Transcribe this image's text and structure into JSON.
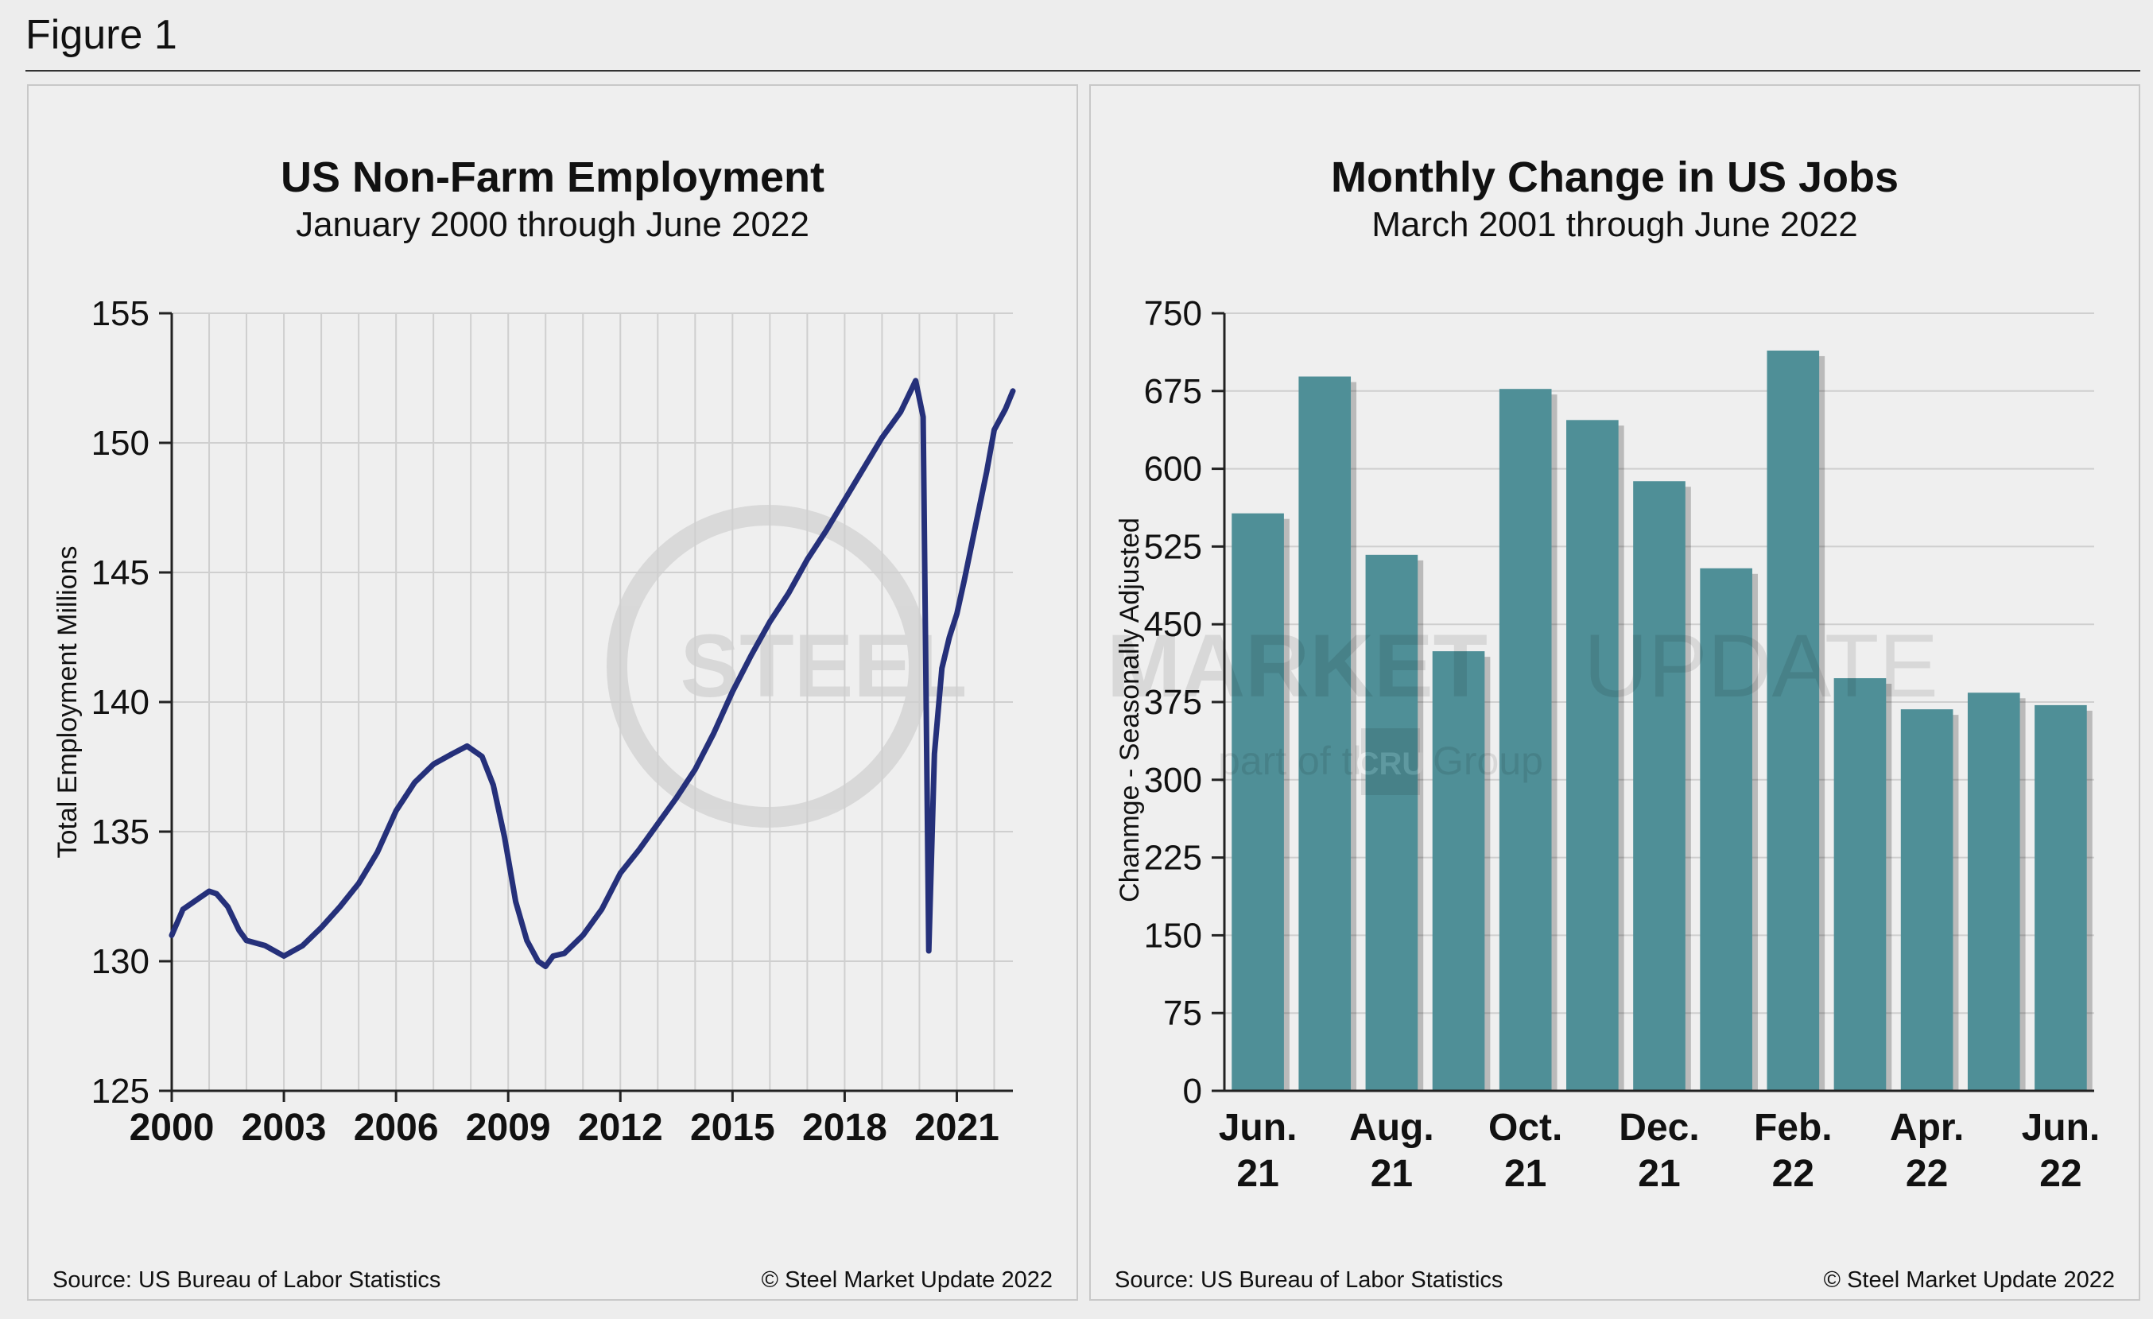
{
  "figure_title": "Figure 1",
  "watermark": {
    "line1_a": "STEEL",
    "line1_b": "MARKET",
    "line1_c": "UPDATE",
    "line2_a": "part of the",
    "line2_b": "CRU",
    "line2_c": "Group"
  },
  "colors": {
    "line": "#25307a",
    "bar": "#4f8f97",
    "grid": "#cfcfcf",
    "axis": "#222222"
  },
  "chart_data": [
    {
      "type": "line",
      "title": "US Non-Farm Employment",
      "subtitle": "January 2000 through June 2022",
      "ylabel": "Total Employment Millions",
      "xlabel": "",
      "xlim": [
        2000,
        2022.5
      ],
      "ylim": [
        125,
        155
      ],
      "yticks": [
        125,
        130,
        135,
        140,
        145,
        150,
        155
      ],
      "xticks": [
        2000,
        2003,
        2006,
        2009,
        2012,
        2015,
        2018,
        2021
      ],
      "source": "Source: US Bureau of Labor Statistics",
      "copyright": "© Steel Market Update 2022",
      "series": [
        {
          "name": "Total Employment",
          "x": [
            2000.0,
            2000.3,
            2000.6,
            2001.0,
            2001.2,
            2001.5,
            2001.8,
            2002.0,
            2002.5,
            2003.0,
            2003.5,
            2004.0,
            2004.5,
            2005.0,
            2005.5,
            2006.0,
            2006.5,
            2007.0,
            2007.5,
            2007.9,
            2008.3,
            2008.6,
            2008.9,
            2009.2,
            2009.5,
            2009.8,
            2010.0,
            2010.2,
            2010.5,
            2011.0,
            2011.5,
            2012.0,
            2012.5,
            2013.0,
            2013.5,
            2014.0,
            2014.5,
            2015.0,
            2015.5,
            2016.0,
            2016.5,
            2017.0,
            2017.5,
            2018.0,
            2018.5,
            2019.0,
            2019.5,
            2019.9,
            2020.1,
            2020.25,
            2020.4,
            2020.6,
            2020.8,
            2021.0,
            2021.2,
            2021.5,
            2021.8,
            2022.0,
            2022.3,
            2022.5
          ],
          "values": [
            131.0,
            132.0,
            132.3,
            132.7,
            132.6,
            132.1,
            131.2,
            130.8,
            130.6,
            130.2,
            130.6,
            131.3,
            132.1,
            133.0,
            134.2,
            135.8,
            136.9,
            137.6,
            138.0,
            138.3,
            137.9,
            136.8,
            134.8,
            132.3,
            130.8,
            130.0,
            129.8,
            130.2,
            130.3,
            131.0,
            132.0,
            133.4,
            134.3,
            135.3,
            136.3,
            137.4,
            138.8,
            140.4,
            141.8,
            143.1,
            144.2,
            145.5,
            146.6,
            147.8,
            149.0,
            150.2,
            151.2,
            152.4,
            151.0,
            130.4,
            138.0,
            141.3,
            142.5,
            143.4,
            144.7,
            146.8,
            148.9,
            150.5,
            151.3,
            152.0
          ]
        }
      ]
    },
    {
      "type": "bar",
      "title": "Monthly Change in US Jobs",
      "subtitle": "March 2001 through June 2022",
      "ylabel": "Chanmge - Seasonally Adjusted",
      "xlabel": "",
      "ylim": [
        0,
        750
      ],
      "yticks": [
        0,
        75,
        150,
        225,
        300,
        375,
        450,
        525,
        600,
        675,
        750
      ],
      "source": "Source: US Bureau of Labor Statistics",
      "copyright": "© Steel Market Update 2022",
      "categories": [
        "Jun. 21",
        "Jul. 21",
        "Aug. 21",
        "Sep. 21",
        "Oct. 21",
        "Nov. 21",
        "Dec. 21",
        "Jan. 22",
        "Feb. 22",
        "Mar. 22",
        "Apr. 22",
        "May 22",
        "Jun. 22"
      ],
      "category_labels": [
        {
          "index": 0,
          "line1": "Jun.",
          "line2": "21"
        },
        {
          "index": 2,
          "line1": "Aug.",
          "line2": "21"
        },
        {
          "index": 4,
          "line1": "Oct.",
          "line2": "21"
        },
        {
          "index": 6,
          "line1": "Dec.",
          "line2": "21"
        },
        {
          "index": 8,
          "line1": "Feb.",
          "line2": "22"
        },
        {
          "index": 10,
          "line1": "Apr.",
          "line2": "22"
        },
        {
          "index": 12,
          "line1": "Jun.",
          "line2": "22"
        }
      ],
      "values": [
        557,
        689,
        517,
        424,
        677,
        647,
        588,
        504,
        714,
        398,
        368,
        384,
        372
      ]
    }
  ]
}
